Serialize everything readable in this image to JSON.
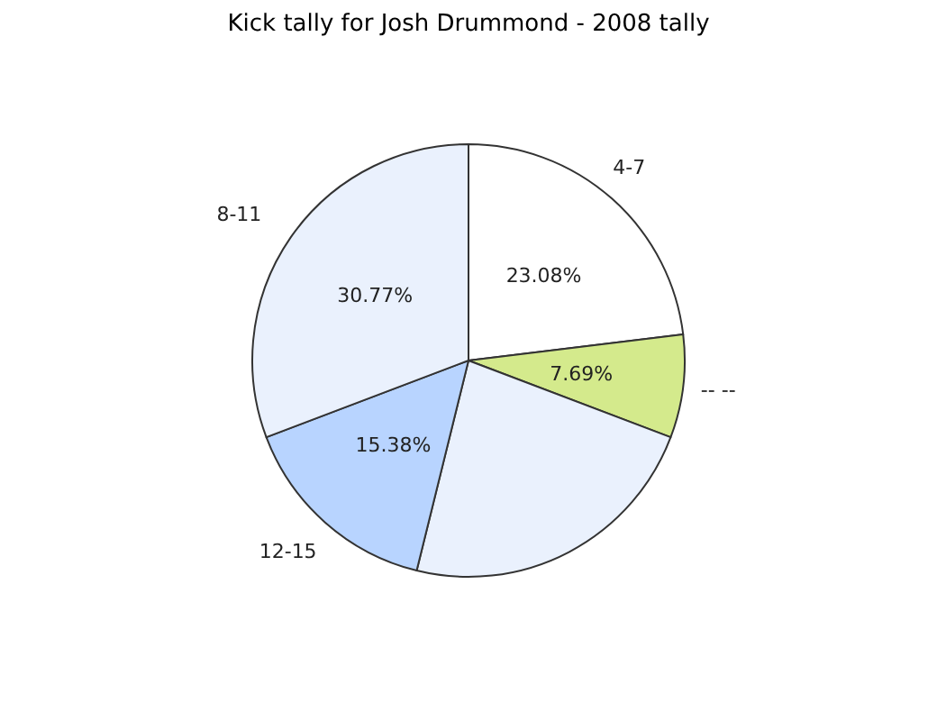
{
  "chart_data": {
    "type": "pie",
    "title": "Kick tally for Josh Drummond - 2008 tally",
    "categories": [
      "4-7",
      "-- --",
      null,
      "12-15",
      "8-11"
    ],
    "values": [
      23.08,
      7.69,
      23.08,
      15.38,
      30.77
    ],
    "value_labels": [
      "23.08%",
      "7.69%",
      null,
      "15.38%",
      "30.77%"
    ],
    "colors": [
      "#ffffff",
      "#d4ea8c",
      "#eaf1fd",
      "#b8d4ff",
      "#eaf1fd"
    ],
    "legend": false
  }
}
